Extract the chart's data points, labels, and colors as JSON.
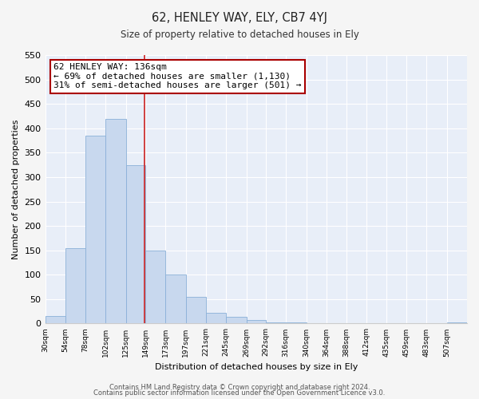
{
  "title": "62, HENLEY WAY, ELY, CB7 4YJ",
  "subtitle": "Size of property relative to detached houses in Ely",
  "xlabel": "Distribution of detached houses by size in Ely",
  "ylabel": "Number of detached properties",
  "bar_color": "#c8d8ee",
  "bar_edge_color": "#8ab0d8",
  "plot_bg_color": "#e8eef8",
  "fig_bg_color": "#f5f5f5",
  "grid_color": "#ffffff",
  "annotation_box_facecolor": "#ffffff",
  "annotation_box_edgecolor": "#aa0000",
  "vline_color": "#cc2222",
  "vline_x": 136,
  "categories": [
    "30sqm",
    "54sqm",
    "78sqm",
    "102sqm",
    "125sqm",
    "149sqm",
    "173sqm",
    "197sqm",
    "221sqm",
    "245sqm",
    "269sqm",
    "292sqm",
    "316sqm",
    "340sqm",
    "364sqm",
    "388sqm",
    "412sqm",
    "435sqm",
    "459sqm",
    "483sqm",
    "507sqm"
  ],
  "bin_left": [
    18,
    42,
    66,
    90,
    114,
    137,
    161,
    185,
    209,
    233,
    257,
    280,
    304,
    328,
    352,
    376,
    400,
    423,
    447,
    471,
    495
  ],
  "bin_right": [
    42,
    66,
    90,
    114,
    137,
    161,
    185,
    209,
    233,
    257,
    280,
    304,
    328,
    352,
    376,
    400,
    423,
    447,
    471,
    495,
    519
  ],
  "values": [
    15,
    155,
    385,
    420,
    325,
    150,
    100,
    55,
    22,
    13,
    7,
    2,
    2,
    1,
    1,
    1,
    0,
    0,
    0,
    0,
    2
  ],
  "ylim": [
    0,
    550
  ],
  "yticks": [
    0,
    50,
    100,
    150,
    200,
    250,
    300,
    350,
    400,
    450,
    500,
    550
  ],
  "xlim_left": 18,
  "xlim_right": 519,
  "annotation_title": "62 HENLEY WAY: 136sqm",
  "annotation_line1": "← 69% of detached houses are smaller (1,130)",
  "annotation_line2": "31% of semi-detached houses are larger (501) →",
  "footer1": "Contains HM Land Registry data © Crown copyright and database right 2024.",
  "footer2": "Contains public sector information licensed under the Open Government Licence v3.0."
}
